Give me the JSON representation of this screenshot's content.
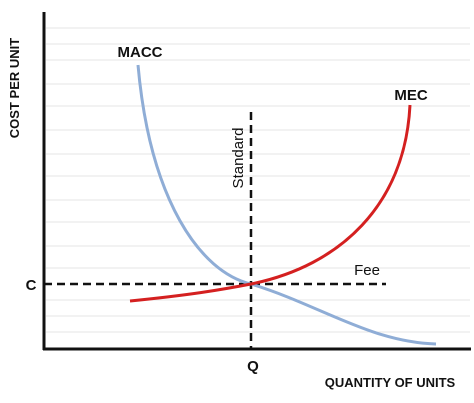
{
  "axes": {
    "y_label": "COST PER UNIT",
    "x_label": "QUANTITY OF UNITS"
  },
  "curves": [
    {
      "label": "MACC"
    },
    {
      "label": "MEC"
    }
  ],
  "lines": {
    "vertical": "Standard",
    "horizontal": "Fee"
  },
  "points": {
    "price": "C",
    "quantity": "Q"
  }
}
